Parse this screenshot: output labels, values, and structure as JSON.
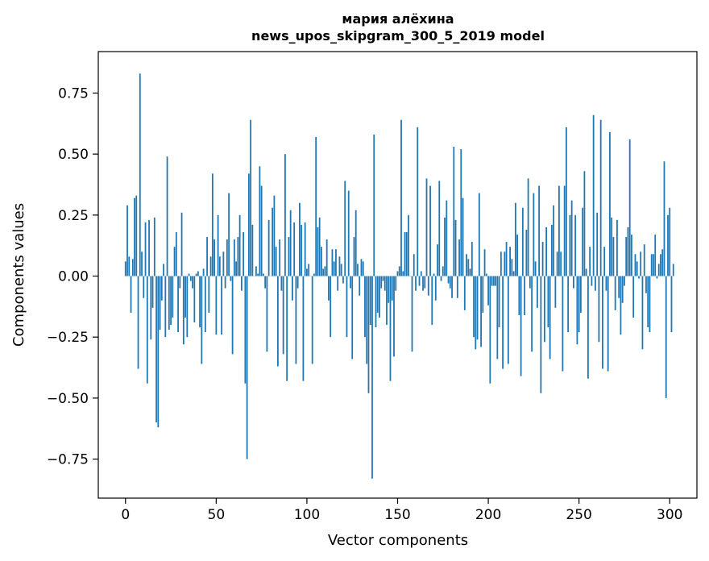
{
  "chart_data": {
    "type": "bar",
    "title": "мария алёхина",
    "subtitle": "news_upos_skipgram_300_5_2019 model",
    "xlabel": "Vector components",
    "ylabel": "Components values",
    "xlim": [
      -15,
      315
    ],
    "ylim": [
      -0.91,
      0.92
    ],
    "xticks": [
      0,
      50,
      100,
      150,
      200,
      250,
      300
    ],
    "yticks": [
      -0.75,
      -0.5,
      -0.25,
      0.0,
      0.25,
      0.5,
      0.75
    ],
    "ytick_labels": [
      "−0.75",
      "−0.50",
      "−0.25",
      "0.00",
      "0.25",
      "0.50",
      "0.75"
    ],
    "grid": false,
    "bar_color": "#1f77b4",
    "x_start": 0,
    "values": [
      0.06,
      0.29,
      0.08,
      -0.15,
      0.07,
      0.32,
      0.33,
      -0.38,
      0.83,
      0.1,
      -0.09,
      0.22,
      -0.44,
      0.23,
      -0.26,
      -0.13,
      0.24,
      -0.6,
      -0.62,
      -0.22,
      -0.1,
      0.05,
      -0.25,
      0.49,
      -0.22,
      -0.2,
      -0.17,
      0.12,
      0.18,
      -0.23,
      -0.05,
      0.26,
      -0.28,
      -0.17,
      -0.25,
      0.01,
      -0.02,
      -0.05,
      -0.19,
      0.01,
      0.02,
      -0.21,
      -0.36,
      0.03,
      -0.23,
      0.16,
      -0.15,
      0.08,
      0.42,
      0.15,
      -0.24,
      0.25,
      0.08,
      -0.24,
      0.1,
      -0.05,
      0.15,
      0.34,
      -0.02,
      -0.32,
      0.15,
      0.06,
      0.16,
      0.25,
      -0.06,
      0.18,
      -0.44,
      -0.75,
      0.42,
      0.64,
      0.21,
      0.0,
      0.04,
      0.01,
      0.45,
      0.37,
      0.01,
      -0.05,
      -0.31,
      0.23,
      0.0,
      0.28,
      0.33,
      0.12,
      -0.37,
      0.15,
      -0.06,
      -0.32,
      0.5,
      -0.43,
      0.16,
      0.27,
      -0.1,
      0.22,
      -0.36,
      -0.05,
      0.3,
      0.21,
      -0.43,
      0.22,
      0.03,
      0.05,
      0.0,
      -0.36,
      0.01,
      0.57,
      0.2,
      0.24,
      0.12,
      0.03,
      0.04,
      0.15,
      -0.1,
      -0.25,
      0.11,
      0.06,
      0.11,
      -0.06,
      0.08,
      0.05,
      -0.03,
      0.39,
      -0.25,
      0.35,
      -0.05,
      -0.34,
      0.16,
      0.27,
      0.05,
      -0.08,
      0.07,
      0.06,
      -0.25,
      -0.36,
      -0.48,
      -0.2,
      -0.83,
      0.58,
      -0.21,
      -0.15,
      -0.17,
      -0.05,
      -0.02,
      -0.06,
      -0.2,
      -0.11,
      -0.43,
      -0.1,
      -0.33,
      -0.06,
      0.02,
      0.04,
      0.64,
      0.02,
      0.18,
      0.18,
      0.25,
      0.0,
      -0.31,
      0.09,
      -0.06,
      0.61,
      -0.04,
      0.02,
      -0.06,
      -0.05,
      0.4,
      -0.08,
      0.37,
      -0.2,
      0.01,
      -0.1,
      0.13,
      0.39,
      -0.02,
      0.04,
      0.24,
      0.31,
      -0.03,
      -0.05,
      -0.09,
      0.53,
      0.23,
      -0.09,
      0.15,
      0.52,
      0.32,
      -0.14,
      0.09,
      0.07,
      0.03,
      0.14,
      -0.25,
      -0.3,
      -0.26,
      0.34,
      -0.29,
      -0.15,
      0.11,
      0.01,
      -0.12,
      -0.44,
      -0.04,
      -0.04,
      -0.04,
      -0.34,
      -0.21,
      0.1,
      -0.38,
      0.1,
      0.14,
      -0.36,
      0.12,
      0.07,
      0.02,
      0.3,
      0.17,
      -0.16,
      -0.41,
      0.28,
      -0.16,
      0.19,
      0.4,
      -0.05,
      -0.31,
      0.34,
      0.06,
      -0.13,
      0.37,
      -0.48,
      0.14,
      -0.27,
      0.2,
      -0.21,
      -0.34,
      0.21,
      0.29,
      -0.13,
      0.1,
      0.37,
      0.1,
      -0.39,
      0.37,
      0.61,
      -0.23,
      0.25,
      0.31,
      -0.05,
      0.25,
      -0.28,
      -0.23,
      -0.15,
      0.28,
      0.43,
      0.03,
      -0.42,
      0.12,
      -0.04,
      0.66,
      -0.06,
      0.26,
      -0.27,
      0.64,
      -0.38,
      0.12,
      -0.06,
      -0.39,
      0.59,
      0.24,
      0.16,
      -0.14,
      0.23,
      -0.09,
      -0.24,
      -0.11,
      -0.04,
      0.16,
      0.2,
      0.56,
      0.17,
      -0.17,
      0.09,
      0.06,
      -0.01,
      0.1,
      -0.3,
      0.13,
      -0.07,
      -0.21,
      -0.23,
      0.09,
      0.09,
      0.17,
      -0.01,
      0.05,
      0.09,
      0.11,
      0.47,
      -0.5,
      0.25,
      0.28,
      -0.23,
      0.05
    ]
  }
}
